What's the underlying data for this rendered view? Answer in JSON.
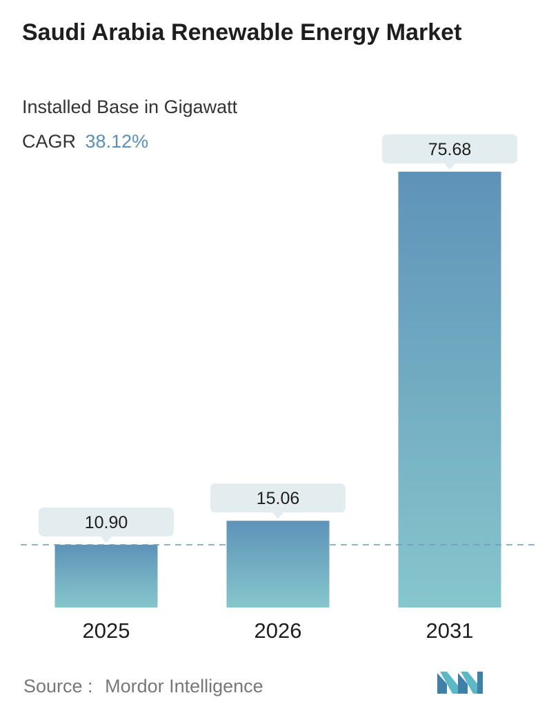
{
  "title": "Saudi Arabia Renewable Energy Market",
  "subtitle": "Installed Base in Gigawatt",
  "cagr": {
    "label": "CAGR",
    "value": "38.12%"
  },
  "source": {
    "label": "Source :",
    "value": "Mordor Intelligence"
  },
  "logo": {
    "name": "mordor-intelligence-logo"
  },
  "colors": {
    "bar_top": "#5e93b8",
    "bar_bottom": "#86c6cc",
    "label_box": "#e3ecef",
    "dashed_line": "#6a9bbf"
  },
  "chart_data": {
    "type": "bar",
    "categories": [
      "2025",
      "2026",
      "2031"
    ],
    "values": [
      10.9,
      15.06,
      75.68
    ],
    "value_labels": [
      "10.90",
      "15.06",
      "75.68"
    ],
    "xlabel": "",
    "ylabel": "",
    "ylim": [
      0,
      80
    ],
    "grid": false,
    "reference_line": {
      "value": 10.9,
      "style": "dashed"
    }
  }
}
